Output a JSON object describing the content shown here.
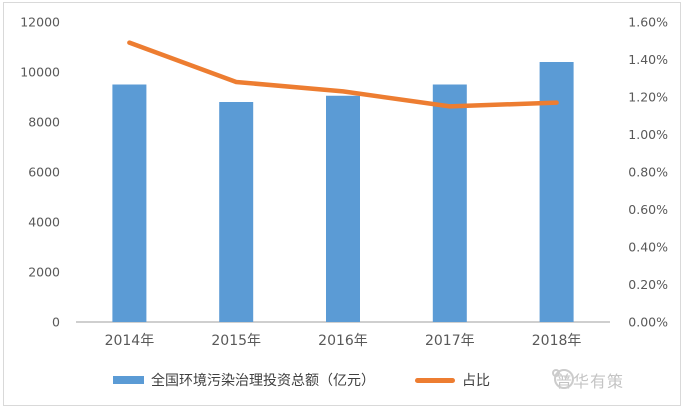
{
  "chart_data": {
    "type": "combo",
    "title": "",
    "categories": [
      "2014年",
      "2015年",
      "2016年",
      "2017年",
      "2018年"
    ],
    "series": [
      {
        "name": "全国环境污染治理投资总额（亿元）",
        "type": "bar",
        "axis": "left",
        "color": "#5B9BD5",
        "values": [
          9500,
          8800,
          9050,
          9500,
          10400
        ]
      },
      {
        "name": "占比",
        "type": "line",
        "axis": "right",
        "color": "#ED7D31",
        "unit": "%",
        "values": [
          1.49,
          1.28,
          1.23,
          1.15,
          1.17
        ]
      }
    ],
    "left_axis": {
      "min": 0,
      "max": 12000,
      "step": 2000,
      "tick_labels": [
        "12000",
        "10000",
        "8000",
        "6000",
        "4000",
        "2000",
        "0"
      ]
    },
    "right_axis": {
      "min": 0,
      "max": 1.6,
      "step": 0.2,
      "tick_labels": [
        "1.60%",
        "1.40%",
        "1.20%",
        "1.00%",
        "0.80%",
        "0.60%",
        "0.40%",
        "0.20%",
        "0.00%"
      ]
    },
    "grid": false,
    "legend_position": "bottom"
  },
  "legend": {
    "bar_label": "全国环境污染治理投资总额（亿元）",
    "line_label": "占比"
  },
  "watermark": {
    "text": "普华有策"
  },
  "colors": {
    "bar": "#5B9BD5",
    "line": "#ED7D31",
    "axis_text": "#595959",
    "axis_line": "#bfbfbf",
    "border": "#d9d9d9",
    "watermark": "#c4c4c4"
  }
}
